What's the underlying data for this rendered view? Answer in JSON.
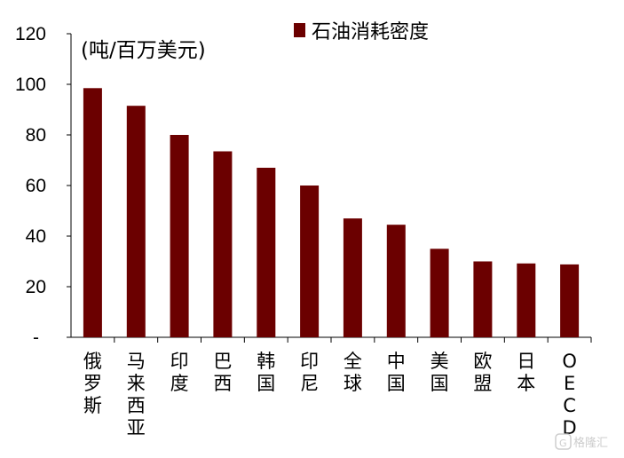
{
  "chart_data": {
    "type": "bar",
    "title": "",
    "unit_label": "(吨/百万美元)",
    "xlabel": "",
    "ylabel": "",
    "ylim": [
      0,
      120
    ],
    "yticks": [
      "-",
      "20",
      "40",
      "60",
      "80",
      "100",
      "120"
    ],
    "grid": false,
    "legend_position": "top",
    "categories": [
      "俄罗斯",
      "马来西亚",
      "印度",
      "巴西",
      "韩国",
      "印尼",
      "全球",
      "中国",
      "美国",
      "欧盟",
      "日本",
      "OECD"
    ],
    "series": [
      {
        "name": "石油消耗密度",
        "color": "#6b0000",
        "values": [
          98.5,
          91.5,
          80,
          73.5,
          67,
          60,
          47,
          44.5,
          35,
          30,
          29.2,
          28.8
        ]
      }
    ]
  },
  "watermark": {
    "text": "格隆汇",
    "icon": "G"
  }
}
